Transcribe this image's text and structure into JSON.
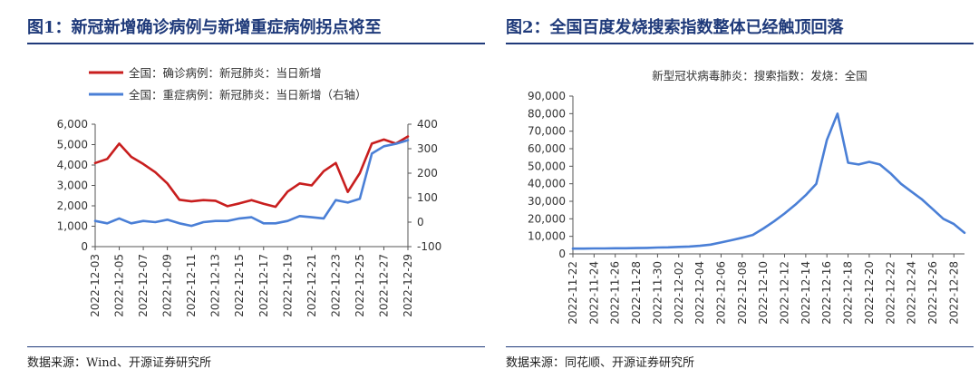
{
  "figures": [
    {
      "title": "图1：新冠新增确诊病例与新增重症病例拐点将至",
      "source": "数据来源：Wind、开源证券研究所"
    },
    {
      "title": "图2：全国百度发烧搜索指数整体已经触顶回落",
      "source": "数据来源：同花顺、开源证券研究所"
    }
  ],
  "chart_data": [
    {
      "type": "line",
      "title": "",
      "x": [
        "2022-12-03",
        "2022-12-04",
        "2022-12-05",
        "2022-12-06",
        "2022-12-07",
        "2022-12-08",
        "2022-12-09",
        "2022-12-10",
        "2022-12-11",
        "2022-12-12",
        "2022-12-13",
        "2022-12-14",
        "2022-12-15",
        "2022-12-16",
        "2022-12-17",
        "2022-12-18",
        "2022-12-19",
        "2022-12-20",
        "2022-12-21",
        "2022-12-22",
        "2022-12-23",
        "2022-12-24",
        "2022-12-25",
        "2022-12-26",
        "2022-12-27",
        "2022-12-28",
        "2022-12-29"
      ],
      "x_tick_labels": [
        "2022-12-03",
        "2022-12-05",
        "2022-12-07",
        "2022-12-09",
        "2022-12-11",
        "2022-12-13",
        "2022-12-15",
        "2022-12-17",
        "2022-12-19",
        "2022-12-21",
        "2022-12-23",
        "2022-12-25",
        "2022-12-27",
        "2022-12-29"
      ],
      "series": [
        {
          "name": "全国：确诊病例：新冠肺炎：当日新增",
          "axis": "left",
          "color": "#c81e1e",
          "values": [
            4100,
            4300,
            5050,
            4400,
            4050,
            3650,
            3100,
            2300,
            2220,
            2280,
            2250,
            1980,
            2120,
            2280,
            2100,
            1950,
            2700,
            3100,
            3000,
            3700,
            4100,
            2680,
            3600,
            5050,
            5250,
            5050,
            5400
          ]
        },
        {
          "name": "全国：重症病例：新冠肺炎：当日新增（右轴）",
          "axis": "right",
          "color": "#4a7fd6",
          "values": [
            5,
            -5,
            15,
            -5,
            5,
            0,
            10,
            -5,
            -15,
            0,
            5,
            5,
            15,
            20,
            -5,
            -5,
            5,
            25,
            20,
            15,
            90,
            80,
            95,
            280,
            310,
            320,
            335
          ]
        }
      ],
      "yleft": {
        "range": [
          0,
          6000
        ],
        "ticks": [
          "0",
          "1,000",
          "2,000",
          "3,000",
          "4,000",
          "5,000",
          "6,000"
        ]
      },
      "yright": {
        "range": [
          -100,
          400
        ],
        "ticks": [
          "-100",
          "0",
          "100",
          "200",
          "300",
          "400"
        ]
      },
      "legend": "top-left",
      "grid": false
    },
    {
      "type": "line",
      "title": "新型冠状病毒肺炎：搜索指数：发烧：全国",
      "x": [
        "2022-11-22",
        "2022-11-23",
        "2022-11-24",
        "2022-11-25",
        "2022-11-26",
        "2022-11-27",
        "2022-11-28",
        "2022-11-29",
        "2022-11-30",
        "2022-12-01",
        "2022-12-02",
        "2022-12-03",
        "2022-12-04",
        "2022-12-05",
        "2022-12-06",
        "2022-12-07",
        "2022-12-08",
        "2022-12-09",
        "2022-12-10",
        "2022-12-11",
        "2022-12-12",
        "2022-12-13",
        "2022-12-14",
        "2022-12-15",
        "2022-12-16",
        "2022-12-17",
        "2022-12-18",
        "2022-12-19",
        "2022-12-20",
        "2022-12-21",
        "2022-12-22",
        "2022-12-23",
        "2022-12-24",
        "2022-12-25",
        "2022-12-26",
        "2022-12-27",
        "2022-12-28",
        "2022-12-29"
      ],
      "x_tick_labels": [
        "2022-11-22",
        "2022-11-24",
        "2022-11-26",
        "2022-11-28",
        "2022-11-30",
        "2022-12-02",
        "2022-12-04",
        "2022-12-06",
        "2022-12-08",
        "2022-12-10",
        "2022-12-12",
        "2022-12-14",
        "2022-12-16",
        "2022-12-18",
        "2022-12-20",
        "2022-12-22",
        "2022-12-24",
        "2022-12-26",
        "2022-12-28"
      ],
      "series": [
        {
          "name": "新型冠状病毒肺炎：搜索指数：发烧：全国",
          "color": "#4a7fd6",
          "values": [
            3000,
            3000,
            3100,
            3100,
            3200,
            3200,
            3300,
            3400,
            3600,
            3700,
            4000,
            4200,
            4600,
            5300,
            6500,
            7800,
            9200,
            10800,
            14500,
            18500,
            23000,
            28000,
            33500,
            40000,
            65000,
            80000,
            52000,
            51000,
            52500,
            51000,
            46000,
            40000,
            35500,
            31000,
            25500,
            20000,
            17000,
            12000
          ]
        }
      ],
      "yleft": {
        "range": [
          0,
          90000
        ],
        "ticks": [
          "0",
          "10,000",
          "20,000",
          "30,000",
          "40,000",
          "50,000",
          "60,000",
          "70,000",
          "80,000",
          "90,000"
        ]
      },
      "grid": false
    }
  ]
}
